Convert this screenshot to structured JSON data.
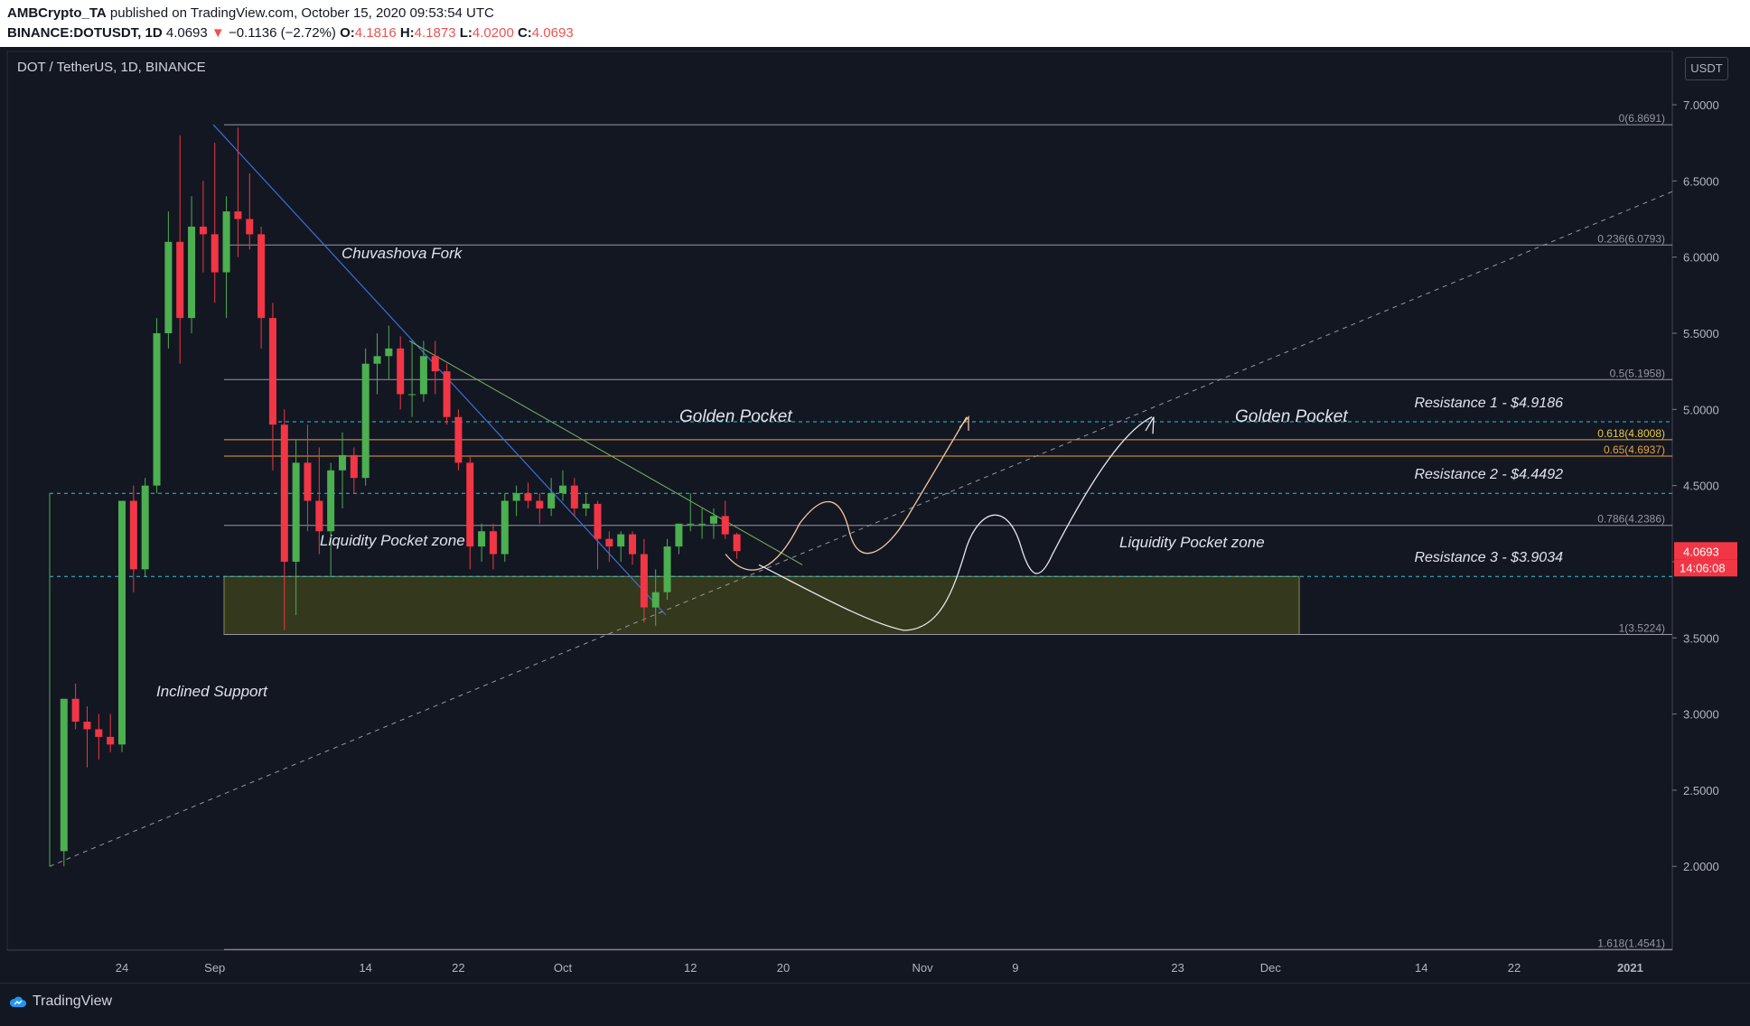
{
  "header": {
    "author": "AMBCrypto_TA",
    "published": "published on TradingView.com, October 15, 2020 09:53:54 UTC",
    "symbol": "BINANCE:DOTUSDT, 1D",
    "last": "4.0693",
    "change_arrow": "▼",
    "change": "−0.1136 (−2.72%)",
    "o_label": "O:",
    "o_val": "4.1816",
    "h_label": "H:",
    "h_val": "4.1873",
    "l_label": "L:",
    "l_val": "4.0200",
    "c_label": "C:",
    "c_val": "4.0693"
  },
  "chart_title": "DOT / TetherUS, 1D, BINANCE",
  "currency_badge": "USDT",
  "footer": {
    "brand": "TradingView"
  },
  "colors": {
    "background": "#131722",
    "up": "#4caf50",
    "down": "#f23645",
    "accent": "#f23645"
  },
  "chart_data": {
    "type": "candlestick",
    "ylim": [
      1.45,
      7.35
    ],
    "y_ticks": [
      "7.0000",
      "6.5000",
      "6.0000",
      "5.5000",
      "5.0000",
      "4.5000",
      "4.0000",
      "3.5000",
      "3.0000",
      "2.5000",
      "2.0000"
    ],
    "x_ticks": [
      {
        "label": "24",
        "date": "2020-08-24"
      },
      {
        "label": "Sep",
        "date": "2020-09-01"
      },
      {
        "label": "14",
        "date": "2020-09-14"
      },
      {
        "label": "22",
        "date": "2020-09-22"
      },
      {
        "label": "Oct",
        "date": "2020-10-01"
      },
      {
        "label": "12",
        "date": "2020-10-12"
      },
      {
        "label": "20",
        "date": "2020-10-20"
      },
      {
        "label": "Nov",
        "date": "2020-11-01"
      },
      {
        "label": "9",
        "date": "2020-11-09"
      },
      {
        "label": "23",
        "date": "2020-11-23"
      },
      {
        "label": "Dec",
        "date": "2020-12-01"
      },
      {
        "label": "14",
        "date": "2020-12-14"
      },
      {
        "label": "22",
        "date": "2020-12-22"
      },
      {
        "label": "2021",
        "date": "2021-01-01"
      }
    ],
    "candles": [
      {
        "d": "2020-08-19",
        "o": 2.1,
        "h": 3.1,
        "l": 2.0,
        "c": 3.1
      },
      {
        "d": "2020-08-20",
        "o": 3.1,
        "h": 3.2,
        "l": 2.9,
        "c": 2.95
      },
      {
        "d": "2020-08-21",
        "o": 2.95,
        "h": 3.05,
        "l": 2.65,
        "c": 2.9
      },
      {
        "d": "2020-08-22",
        "o": 2.9,
        "h": 3.0,
        "l": 2.7,
        "c": 2.85
      },
      {
        "d": "2020-08-23",
        "o": 2.85,
        "h": 3.0,
        "l": 2.75,
        "c": 2.8
      },
      {
        "d": "2020-08-24",
        "o": 2.8,
        "h": 4.4,
        "l": 2.75,
        "c": 4.4
      },
      {
        "d": "2020-08-25",
        "o": 4.4,
        "h": 4.5,
        "l": 3.8,
        "c": 3.95
      },
      {
        "d": "2020-08-26",
        "o": 3.95,
        "h": 4.55,
        "l": 3.9,
        "c": 4.5
      },
      {
        "d": "2020-08-27",
        "o": 4.5,
        "h": 5.6,
        "l": 4.45,
        "c": 5.5
      },
      {
        "d": "2020-08-28",
        "o": 5.5,
        "h": 6.3,
        "l": 5.4,
        "c": 6.1
      },
      {
        "d": "2020-08-29",
        "o": 6.1,
        "h": 6.8,
        "l": 5.3,
        "c": 5.6
      },
      {
        "d": "2020-08-30",
        "o": 5.6,
        "h": 6.4,
        "l": 5.5,
        "c": 6.2
      },
      {
        "d": "2020-08-31",
        "o": 6.2,
        "h": 6.5,
        "l": 5.9,
        "c": 6.15
      },
      {
        "d": "2020-09-01",
        "o": 6.15,
        "h": 6.75,
        "l": 5.7,
        "c": 5.9
      },
      {
        "d": "2020-09-02",
        "o": 5.9,
        "h": 6.4,
        "l": 5.6,
        "c": 6.3
      },
      {
        "d": "2020-09-03",
        "o": 6.3,
        "h": 6.85,
        "l": 6.0,
        "c": 6.25
      },
      {
        "d": "2020-09-04",
        "o": 6.25,
        "h": 6.55,
        "l": 6.05,
        "c": 6.15
      },
      {
        "d": "2020-09-05",
        "o": 6.15,
        "h": 6.2,
        "l": 5.4,
        "c": 5.6
      },
      {
        "d": "2020-09-06",
        "o": 5.6,
        "h": 5.7,
        "l": 4.6,
        "c": 4.9
      },
      {
        "d": "2020-09-07",
        "o": 4.9,
        "h": 5.0,
        "l": 3.55,
        "c": 4.0
      },
      {
        "d": "2020-09-08",
        "o": 4.0,
        "h": 4.8,
        "l": 3.65,
        "c": 4.65
      },
      {
        "d": "2020-09-09",
        "o": 4.65,
        "h": 4.9,
        "l": 4.2,
        "c": 4.4
      },
      {
        "d": "2020-09-10",
        "o": 4.4,
        "h": 4.75,
        "l": 4.05,
        "c": 4.2
      },
      {
        "d": "2020-09-11",
        "o": 4.2,
        "h": 4.65,
        "l": 3.9,
        "c": 4.6
      },
      {
        "d": "2020-09-12",
        "o": 4.6,
        "h": 4.85,
        "l": 4.35,
        "c": 4.7
      },
      {
        "d": "2020-09-13",
        "o": 4.7,
        "h": 4.75,
        "l": 4.45,
        "c": 4.55
      },
      {
        "d": "2020-09-14",
        "o": 4.55,
        "h": 5.4,
        "l": 4.5,
        "c": 5.3
      },
      {
        "d": "2020-09-15",
        "o": 5.3,
        "h": 5.5,
        "l": 5.1,
        "c": 5.35
      },
      {
        "d": "2020-09-16",
        "o": 5.35,
        "h": 5.55,
        "l": 5.2,
        "c": 5.4
      },
      {
        "d": "2020-09-17",
        "o": 5.4,
        "h": 5.48,
        "l": 5.0,
        "c": 5.1
      },
      {
        "d": "2020-09-18",
        "o": 5.1,
        "h": 5.45,
        "l": 4.95,
        "c": 5.1
      },
      {
        "d": "2020-09-19",
        "o": 5.1,
        "h": 5.45,
        "l": 5.05,
        "c": 5.35
      },
      {
        "d": "2020-09-20",
        "o": 5.35,
        "h": 5.45,
        "l": 5.1,
        "c": 5.25
      },
      {
        "d": "2020-09-21",
        "o": 5.25,
        "h": 5.3,
        "l": 4.9,
        "c": 4.95
      },
      {
        "d": "2020-09-22",
        "o": 4.95,
        "h": 5.0,
        "l": 4.6,
        "c": 4.65
      },
      {
        "d": "2020-09-23",
        "o": 4.65,
        "h": 4.7,
        "l": 3.95,
        "c": 4.1
      },
      {
        "d": "2020-09-24",
        "o": 4.1,
        "h": 4.25,
        "l": 4.0,
        "c": 4.2
      },
      {
        "d": "2020-09-25",
        "o": 4.2,
        "h": 4.25,
        "l": 3.95,
        "c": 4.05
      },
      {
        "d": "2020-09-26",
        "o": 4.05,
        "h": 4.45,
        "l": 4.0,
        "c": 4.4
      },
      {
        "d": "2020-09-27",
        "o": 4.4,
        "h": 4.5,
        "l": 4.3,
        "c": 4.45
      },
      {
        "d": "2020-09-28",
        "o": 4.45,
        "h": 4.52,
        "l": 4.35,
        "c": 4.4
      },
      {
        "d": "2020-09-29",
        "o": 4.4,
        "h": 4.45,
        "l": 4.25,
        "c": 4.35
      },
      {
        "d": "2020-09-30",
        "o": 4.35,
        "h": 4.55,
        "l": 4.3,
        "c": 4.45
      },
      {
        "d": "2020-10-01",
        "o": 4.45,
        "h": 4.6,
        "l": 4.4,
        "c": 4.5
      },
      {
        "d": "2020-10-02",
        "o": 4.5,
        "h": 4.55,
        "l": 4.3,
        "c": 4.35
      },
      {
        "d": "2020-10-03",
        "o": 4.35,
        "h": 4.45,
        "l": 4.3,
        "c": 4.38
      },
      {
        "d": "2020-10-04",
        "o": 4.38,
        "h": 4.4,
        "l": 3.95,
        "c": 4.15
      },
      {
        "d": "2020-10-05",
        "o": 4.15,
        "h": 4.2,
        "l": 4.0,
        "c": 4.1
      },
      {
        "d": "2020-10-06",
        "o": 4.1,
        "h": 4.2,
        "l": 4.0,
        "c": 4.18
      },
      {
        "d": "2020-10-07",
        "o": 4.18,
        "h": 4.2,
        "l": 3.98,
        "c": 4.05
      },
      {
        "d": "2020-10-08",
        "o": 4.05,
        "h": 4.15,
        "l": 3.6,
        "c": 3.7
      },
      {
        "d": "2020-10-09",
        "o": 3.7,
        "h": 3.95,
        "l": 3.58,
        "c": 3.8
      },
      {
        "d": "2020-10-10",
        "o": 3.8,
        "h": 4.15,
        "l": 3.75,
        "c": 4.1
      },
      {
        "d": "2020-10-11",
        "o": 4.1,
        "h": 4.25,
        "l": 4.05,
        "c": 4.25
      },
      {
        "d": "2020-10-12",
        "o": 4.25,
        "h": 4.45,
        "l": 4.2,
        "c": 4.25
      },
      {
        "d": "2020-10-13",
        "o": 4.25,
        "h": 4.35,
        "l": 4.15,
        "c": 4.25
      },
      {
        "d": "2020-10-14",
        "o": 4.25,
        "h": 4.35,
        "l": 4.15,
        "c": 4.3
      },
      {
        "d": "2020-10-15",
        "o": 4.3,
        "h": 4.4,
        "l": 4.15,
        "c": 4.18
      },
      {
        "d": "2020-10-16",
        "o": 4.18,
        "h": 4.19,
        "l": 4.02,
        "c": 4.07
      }
    ],
    "fib_levels": [
      {
        "label": "0(6.8691)",
        "value": 6.8691
      },
      {
        "label": "0.236(6.0793)",
        "value": 6.0793
      },
      {
        "label": "0.5(5.1958)",
        "value": 5.1958
      },
      {
        "label": "0.618(4.8008)",
        "value": 4.8008
      },
      {
        "label": "0.65(4.6937)",
        "value": 4.6937
      },
      {
        "label": "0.786(4.2386)",
        "value": 4.2386
      },
      {
        "label": "1(3.5224)",
        "value": 3.5224
      },
      {
        "label": "1.618(1.4541)",
        "value": 1.4541
      }
    ],
    "resistances": [
      {
        "label": "Resistance 1 - $4.9186",
        "value": 4.9186
      },
      {
        "label": "Resistance 2 - $4.4492",
        "value": 4.4492
      },
      {
        "label": "Resistance 3 - $3.9034",
        "value": 3.9034
      }
    ],
    "annotations": {
      "fork": "Chuvashova Fork",
      "golden_pocket": "Golden Pocket",
      "liquidity_zone": "Liquidity Pocket zone",
      "inclined_support": "Inclined Support"
    },
    "price_label": "4.0693",
    "countdown_label": "14:06:08"
  }
}
